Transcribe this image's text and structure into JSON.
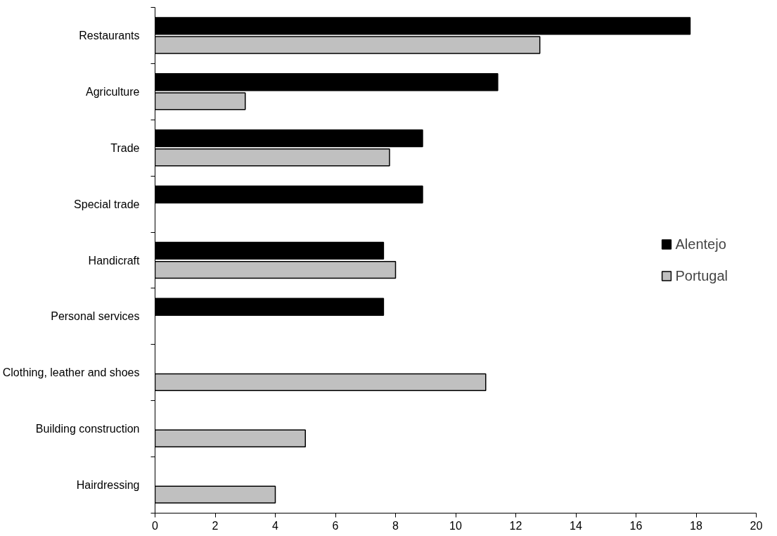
{
  "chart_data": {
    "type": "bar",
    "orientation": "horizontal",
    "categories": [
      "Restaurants",
      "Agriculture",
      "Trade",
      "Special trade",
      "Handicraft",
      "Personal services",
      "Clothing, leather and shoes",
      "Building construction",
      "Hairdressing"
    ],
    "series": [
      {
        "name": "Alentejo",
        "color": "#000000",
        "values": [
          17.8,
          11.4,
          8.9,
          8.9,
          7.6,
          7.6,
          null,
          null,
          null
        ]
      },
      {
        "name": "Portugal",
        "color": "#c0c0c0",
        "values": [
          12.8,
          3.0,
          7.8,
          null,
          8.0,
          null,
          11.0,
          5.0,
          4.0
        ]
      }
    ],
    "xlim": [
      0,
      20
    ],
    "xticks": [
      0,
      2,
      4,
      6,
      8,
      10,
      12,
      14,
      16,
      18,
      20
    ],
    "grid": false,
    "legend": "right"
  }
}
